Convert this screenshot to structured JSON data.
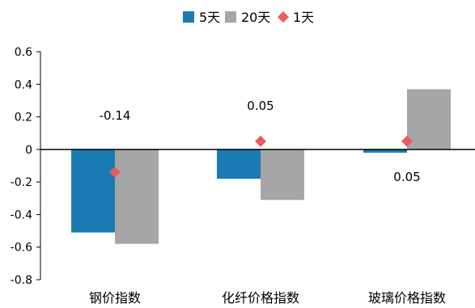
{
  "chart_data": {
    "type": "bar",
    "categories": [
      "钢价指数",
      "化纤价格指数",
      "玻璃价格指数"
    ],
    "series": [
      {
        "name": "5天",
        "kind": "bar",
        "color": "#1a7bb3",
        "values": [
          -0.51,
          -0.18,
          -0.02
        ]
      },
      {
        "name": "20天",
        "kind": "bar",
        "color": "#a6a6a6",
        "values": [
          -0.58,
          -0.31,
          0.37
        ]
      },
      {
        "name": "1天",
        "kind": "marker",
        "marker": "diamond",
        "color": "#ec5b5b",
        "values": [
          -0.14,
          0.05,
          0.05
        ]
      }
    ],
    "data_labels": [
      "-0.14",
      "0.05",
      "0.05"
    ],
    "yticks": [
      "0.6",
      "0.4",
      "0.2",
      "0",
      "-0.2",
      "-0.4",
      "-0.6",
      "-0.8"
    ],
    "ylim": [
      -0.8,
      0.6
    ],
    "legend": "top-center",
    "grid": false
  }
}
